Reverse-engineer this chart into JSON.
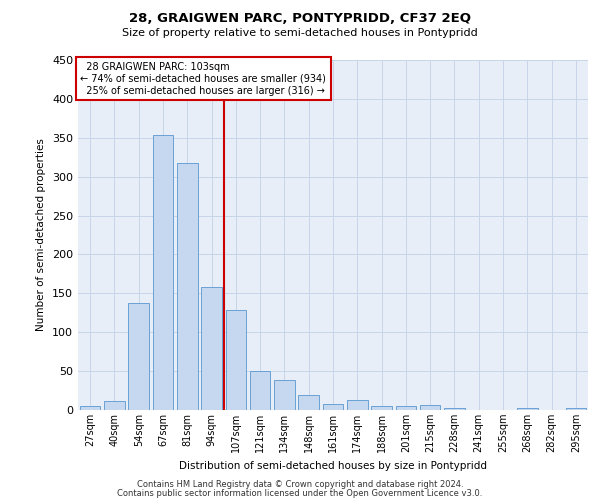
{
  "title": "28, GRAIGWEN PARC, PONTYPRIDD, CF37 2EQ",
  "subtitle": "Size of property relative to semi-detached houses in Pontypridd",
  "xlabel": "Distribution of semi-detached houses by size in Pontypridd",
  "ylabel": "Number of semi-detached properties",
  "categories": [
    "27sqm",
    "40sqm",
    "54sqm",
    "67sqm",
    "81sqm",
    "94sqm",
    "107sqm",
    "121sqm",
    "134sqm",
    "148sqm",
    "161sqm",
    "174sqm",
    "188sqm",
    "201sqm",
    "215sqm",
    "228sqm",
    "241sqm",
    "255sqm",
    "268sqm",
    "282sqm",
    "295sqm"
  ],
  "values": [
    5,
    11,
    137,
    354,
    317,
    158,
    128,
    50,
    38,
    19,
    8,
    13,
    5,
    5,
    6,
    2,
    0,
    0,
    2,
    0,
    2
  ],
  "bar_color": "#c5d8f0",
  "bar_edge_color": "#6aa0d4",
  "property_label": "28 GRAIGWEN PARC: 103sqm",
  "pct_smaller": 74,
  "n_smaller": 934,
  "pct_larger": 25,
  "n_larger": 316,
  "vline_color": "#cc0000",
  "vline_bin_index": 5.5,
  "annotation_box_color": "#cc0000",
  "ylim": [
    0,
    450
  ],
  "yticks": [
    0,
    50,
    100,
    150,
    200,
    250,
    300,
    350,
    400,
    450
  ],
  "grid_color": "#c8d4e8",
  "bg_color": "#e8eef8",
  "footer1": "Contains HM Land Registry data © Crown copyright and database right 2024.",
  "footer2": "Contains public sector information licensed under the Open Government Licence v3.0."
}
